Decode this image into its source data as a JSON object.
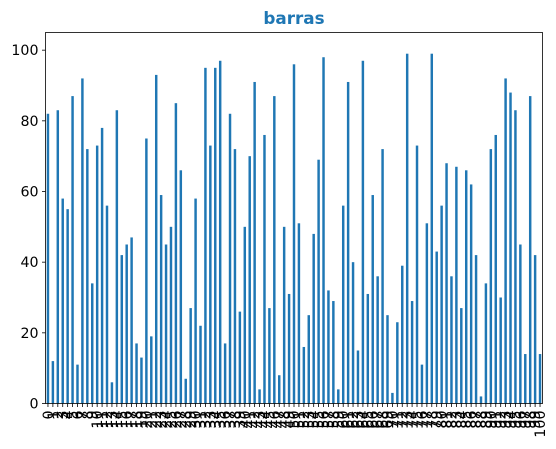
{
  "chart_data": {
    "type": "bar",
    "title": "barras",
    "xlabel": "",
    "ylabel": "",
    "ylim": [
      0,
      105
    ],
    "yticks": [
      0,
      20,
      40,
      60,
      80,
      100
    ],
    "categories": [
      "0",
      "1",
      "2",
      "3",
      "4",
      "5",
      "6",
      "7",
      "8",
      "9",
      "10",
      "11",
      "12",
      "13",
      "14",
      "15",
      "16",
      "17",
      "18",
      "19",
      "20",
      "21",
      "22",
      "23",
      "24",
      "25",
      "26",
      "27",
      "28",
      "29",
      "30",
      "31",
      "32",
      "33",
      "34",
      "35",
      "36",
      "37",
      "38",
      "39",
      "40",
      "41",
      "42",
      "43",
      "44",
      "45",
      "46",
      "47",
      "48",
      "49",
      "50",
      "51",
      "52",
      "53",
      "54",
      "55",
      "56",
      "57",
      "58",
      "59",
      "60",
      "61",
      "62",
      "63",
      "64",
      "65",
      "66",
      "67",
      "68",
      "69",
      "70",
      "71",
      "72",
      "73",
      "74",
      "75",
      "76",
      "77",
      "78",
      "79",
      "80",
      "81",
      "82",
      "83",
      "84",
      "85",
      "86",
      "87",
      "88",
      "89",
      "90",
      "91",
      "92",
      "93",
      "94",
      "95",
      "96",
      "97",
      "98",
      "99",
      "100"
    ],
    "values": [
      82,
      12,
      83,
      58,
      55,
      87,
      11,
      92,
      72,
      34,
      73,
      78,
      56,
      6,
      83,
      42,
      45,
      47,
      17,
      13,
      75,
      19,
      93,
      59,
      45,
      50,
      85,
      66,
      7,
      27,
      58,
      22,
      95,
      73,
      95,
      97,
      17,
      82,
      72,
      26,
      50,
      70,
      91,
      4,
      76,
      27,
      87,
      8,
      50,
      31,
      96,
      51,
      16,
      25,
      48,
      69,
      98,
      32,
      29,
      4,
      56,
      91,
      40,
      15,
      97,
      31,
      59,
      36,
      72,
      25,
      3,
      23,
      39,
      99,
      29,
      73,
      11,
      51,
      99,
      43,
      56,
      68,
      36,
      67,
      27,
      66,
      62,
      42,
      2,
      34,
      72,
      76,
      30,
      92,
      88,
      83,
      45,
      14,
      87,
      42,
      14
    ],
    "bar_color": "#1f77b4",
    "title_color": "#1f77b4",
    "grid": false,
    "legend": "none"
  }
}
